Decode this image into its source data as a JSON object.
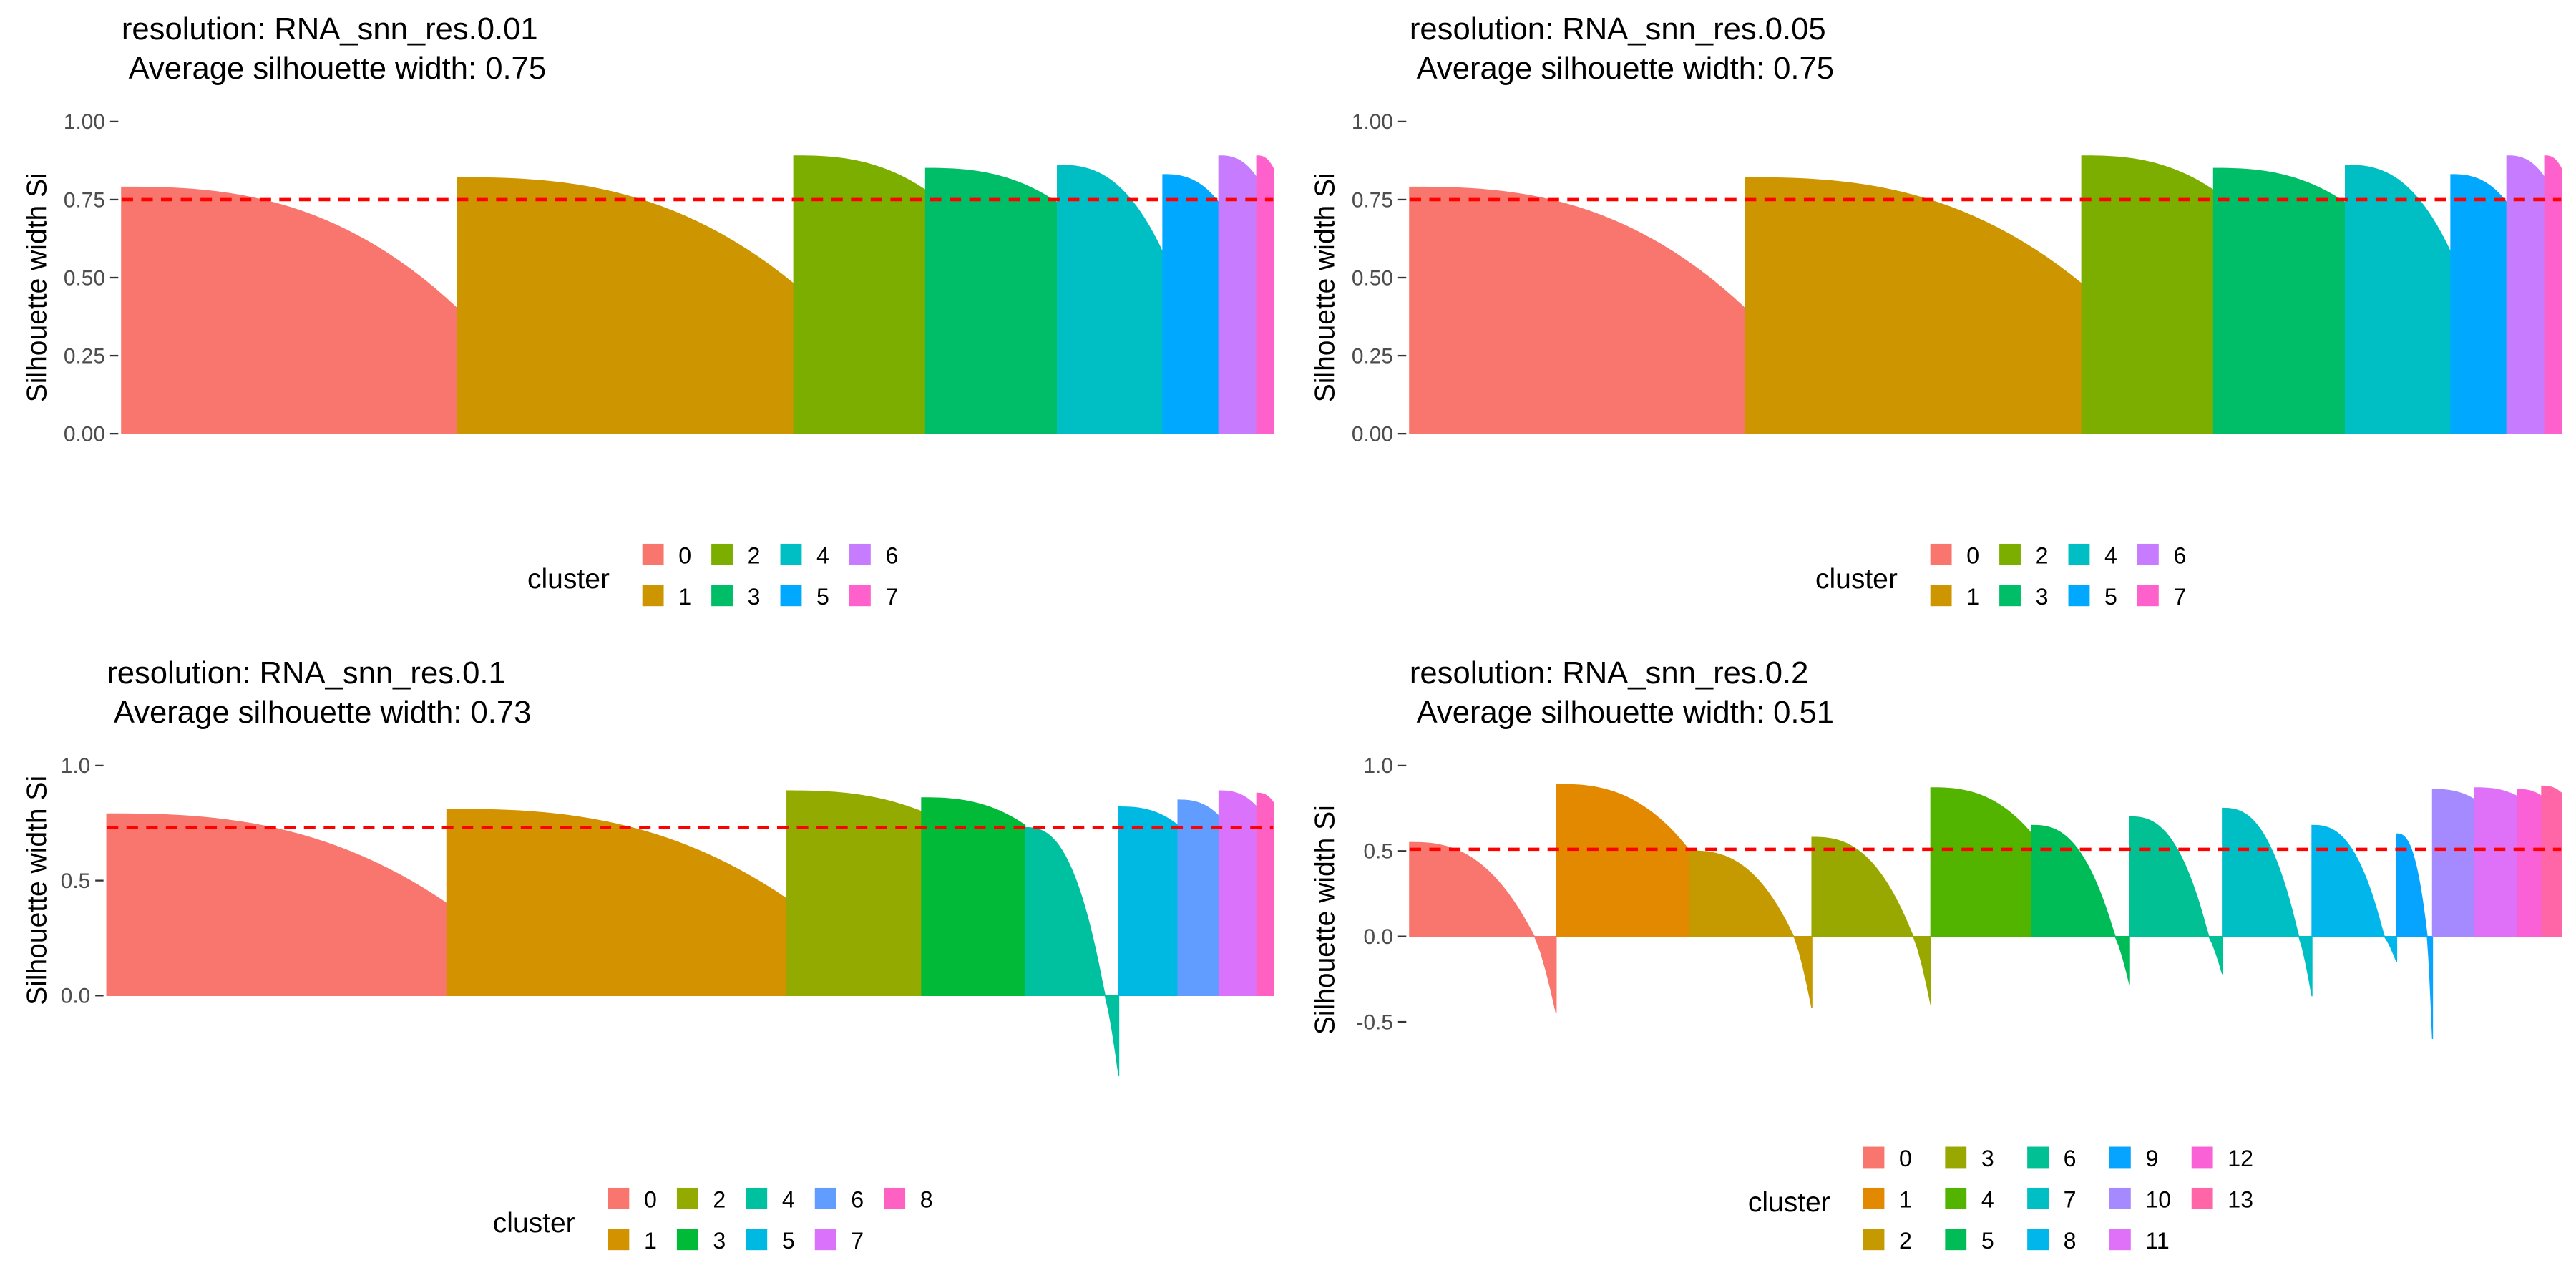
{
  "chart_data": [
    {
      "type": "area",
      "title_line1": "resolution: RNA_snn_res.0.01",
      "title_line2": " Average silhouette width: 0.75",
      "ylabel": "Silhouette width Si",
      "ylim": [
        0,
        1
      ],
      "yticks": [
        "0.00",
        "0.25",
        "0.50",
        "0.75",
        "1.00"
      ],
      "ytick_values": [
        0,
        0.25,
        0.5,
        0.75,
        1.0
      ],
      "average": 0.75,
      "legend_title": "cluster",
      "legend_rows": 2,
      "clusters": [
        {
          "name": "0",
          "color": "#F8766D",
          "size": 2040,
          "max": 0.79,
          "min": 0.4,
          "neg": 0
        },
        {
          "name": "1",
          "color": "#CD9600",
          "size": 2040,
          "max": 0.82,
          "min": 0.48,
          "neg": 0
        },
        {
          "name": "2",
          "color": "#7CAE00",
          "size": 800,
          "max": 0.89,
          "min": 0.78,
          "neg": 0
        },
        {
          "name": "3",
          "color": "#00BE67",
          "size": 800,
          "max": 0.85,
          "min": 0.74,
          "neg": 0
        },
        {
          "name": "4",
          "color": "#00BFC4",
          "size": 640,
          "max": 0.86,
          "min": 0.58,
          "neg": 0
        },
        {
          "name": "5",
          "color": "#00A9FF",
          "size": 340,
          "max": 0.83,
          "min": 0.74,
          "neg": 0
        },
        {
          "name": "6",
          "color": "#C77CFF",
          "size": 230,
          "max": 0.89,
          "min": 0.82,
          "neg": 0
        },
        {
          "name": "7",
          "color": "#FF61CC",
          "size": 100,
          "max": 0.89,
          "min": 0.85,
          "neg": 0
        }
      ]
    },
    {
      "type": "area",
      "title_line1": "resolution: RNA_snn_res.0.05",
      "title_line2": " Average silhouette width: 0.75",
      "ylabel": "Silhouette width Si",
      "ylim": [
        0,
        1
      ],
      "yticks": [
        "0.00",
        "0.25",
        "0.50",
        "0.75",
        "1.00"
      ],
      "ytick_values": [
        0,
        0.25,
        0.5,
        0.75,
        1.0
      ],
      "average": 0.75,
      "legend_title": "cluster",
      "legend_rows": 2,
      "clusters": [
        {
          "name": "0",
          "color": "#F8766D",
          "size": 2040,
          "max": 0.79,
          "min": 0.4,
          "neg": 0
        },
        {
          "name": "1",
          "color": "#CD9600",
          "size": 2040,
          "max": 0.82,
          "min": 0.48,
          "neg": 0
        },
        {
          "name": "2",
          "color": "#7CAE00",
          "size": 800,
          "max": 0.89,
          "min": 0.78,
          "neg": 0
        },
        {
          "name": "3",
          "color": "#00BE67",
          "size": 800,
          "max": 0.85,
          "min": 0.74,
          "neg": 0
        },
        {
          "name": "4",
          "color": "#00BFC4",
          "size": 640,
          "max": 0.86,
          "min": 0.58,
          "neg": 0
        },
        {
          "name": "5",
          "color": "#00A9FF",
          "size": 340,
          "max": 0.83,
          "min": 0.74,
          "neg": 0
        },
        {
          "name": "6",
          "color": "#C77CFF",
          "size": 230,
          "max": 0.89,
          "min": 0.82,
          "neg": 0
        },
        {
          "name": "7",
          "color": "#FF61CC",
          "size": 100,
          "max": 0.89,
          "min": 0.85,
          "neg": 0
        }
      ]
    },
    {
      "type": "area",
      "title_line1": "resolution: RNA_snn_res.0.1",
      "title_line2": " Average silhouette width: 0.73",
      "ylabel": "Silhouette width Si",
      "ylim": [
        -0.35,
        1
      ],
      "yticks": [
        "0.0",
        "0.5",
        "1.0"
      ],
      "ytick_values": [
        0,
        0.5,
        1.0
      ],
      "average": 0.73,
      "legend_title": "cluster",
      "legend_rows": 2,
      "clusters": [
        {
          "name": "0",
          "color": "#F8766D",
          "size": 2070,
          "max": 0.79,
          "min": 0.4,
          "neg": 0
        },
        {
          "name": "1",
          "color": "#D39200",
          "size": 2070,
          "max": 0.81,
          "min": 0.42,
          "neg": 0
        },
        {
          "name": "2",
          "color": "#93AA00",
          "size": 820,
          "max": 0.89,
          "min": 0.8,
          "neg": 0
        },
        {
          "name": "3",
          "color": "#00BA38",
          "size": 630,
          "max": 0.86,
          "min": 0.74,
          "neg": 0
        },
        {
          "name": "4",
          "color": "#00C19F",
          "size": 570,
          "max": 0.73,
          "min": 0.0,
          "neg": -0.35
        },
        {
          "name": "5",
          "color": "#00B9E3",
          "size": 360,
          "max": 0.82,
          "min": 0.74,
          "neg": 0
        },
        {
          "name": "6",
          "color": "#619CFF",
          "size": 250,
          "max": 0.85,
          "min": 0.78,
          "neg": 0
        },
        {
          "name": "7",
          "color": "#DB72FB",
          "size": 230,
          "max": 0.89,
          "min": 0.82,
          "neg": 0
        },
        {
          "name": "8",
          "color": "#FF61C3",
          "size": 100,
          "max": 0.88,
          "min": 0.84,
          "neg": 0
        }
      ]
    },
    {
      "type": "area",
      "title_line1": "resolution: RNA_snn_res.0.2",
      "title_line2": " Average silhouette width: 0.51",
      "ylabel": "Silhouette width Si",
      "ylim": [
        -0.6,
        1
      ],
      "yticks": [
        "-0.5",
        "0.0",
        "0.5",
        "1.0"
      ],
      "ytick_values": [
        -0.5,
        0,
        0.5,
        1.0
      ],
      "average": 0.51,
      "legend_title": "cluster",
      "legend_rows": 3,
      "clusters": [
        {
          "name": "0",
          "color": "#F8766D",
          "size": 900,
          "max": 0.55,
          "min": 0.0,
          "neg": -0.45
        },
        {
          "name": "1",
          "color": "#E38900",
          "size": 820,
          "max": 0.89,
          "min": 0.5,
          "neg": 0
        },
        {
          "name": "2",
          "color": "#C49A00",
          "size": 750,
          "max": 0.5,
          "min": 0.0,
          "neg": -0.42
        },
        {
          "name": "3",
          "color": "#99A800",
          "size": 730,
          "max": 0.58,
          "min": 0.0,
          "neg": -0.4
        },
        {
          "name": "4",
          "color": "#53B400",
          "size": 620,
          "max": 0.87,
          "min": 0.6,
          "neg": 0
        },
        {
          "name": "5",
          "color": "#00BC56",
          "size": 600,
          "max": 0.65,
          "min": 0.0,
          "neg": -0.28
        },
        {
          "name": "6",
          "color": "#00C094",
          "size": 570,
          "max": 0.7,
          "min": 0.0,
          "neg": -0.22
        },
        {
          "name": "7",
          "color": "#00BFC4",
          "size": 550,
          "max": 0.75,
          "min": 0.0,
          "neg": -0.35
        },
        {
          "name": "8",
          "color": "#00B6EB",
          "size": 520,
          "max": 0.65,
          "min": 0.0,
          "neg": -0.15
        },
        {
          "name": "9",
          "color": "#06A4FF",
          "size": 220,
          "max": 0.6,
          "min": 0.0,
          "neg": -0.6
        },
        {
          "name": "10",
          "color": "#A58AFF",
          "size": 260,
          "max": 0.86,
          "min": 0.8,
          "neg": 0
        },
        {
          "name": "11",
          "color": "#DF70F8",
          "size": 260,
          "max": 0.87,
          "min": 0.82,
          "neg": 0
        },
        {
          "name": "12",
          "color": "#FB61D7",
          "size": 150,
          "max": 0.86,
          "min": 0.82,
          "neg": 0
        },
        {
          "name": "13",
          "color": "#FF66A8",
          "size": 120,
          "max": 0.88,
          "min": 0.84,
          "neg": 0
        }
      ]
    }
  ]
}
